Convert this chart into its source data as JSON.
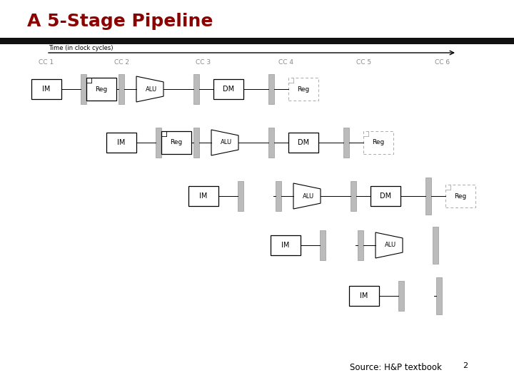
{
  "title": "A 5-Stage Pipeline",
  "title_color": "#8B0000",
  "title_fontsize": 18,
  "source_text": "Source: H&P textbook",
  "source_number": "2",
  "background_color": "#ffffff",
  "time_label": "Time (in clock cycles)",
  "cc_labels": [
    "CC 1",
    "CC 2",
    "CC 3",
    "CC 4",
    "CC 5",
    "CC 6"
  ],
  "header_bar_color": "#111111",
  "box_color": "#ffffff",
  "box_edge_color": "#000000",
  "divider_color": "#aaaaaa",
  "alu_color": "#ffffff",
  "dashed_box_color": "#aaaaaa"
}
